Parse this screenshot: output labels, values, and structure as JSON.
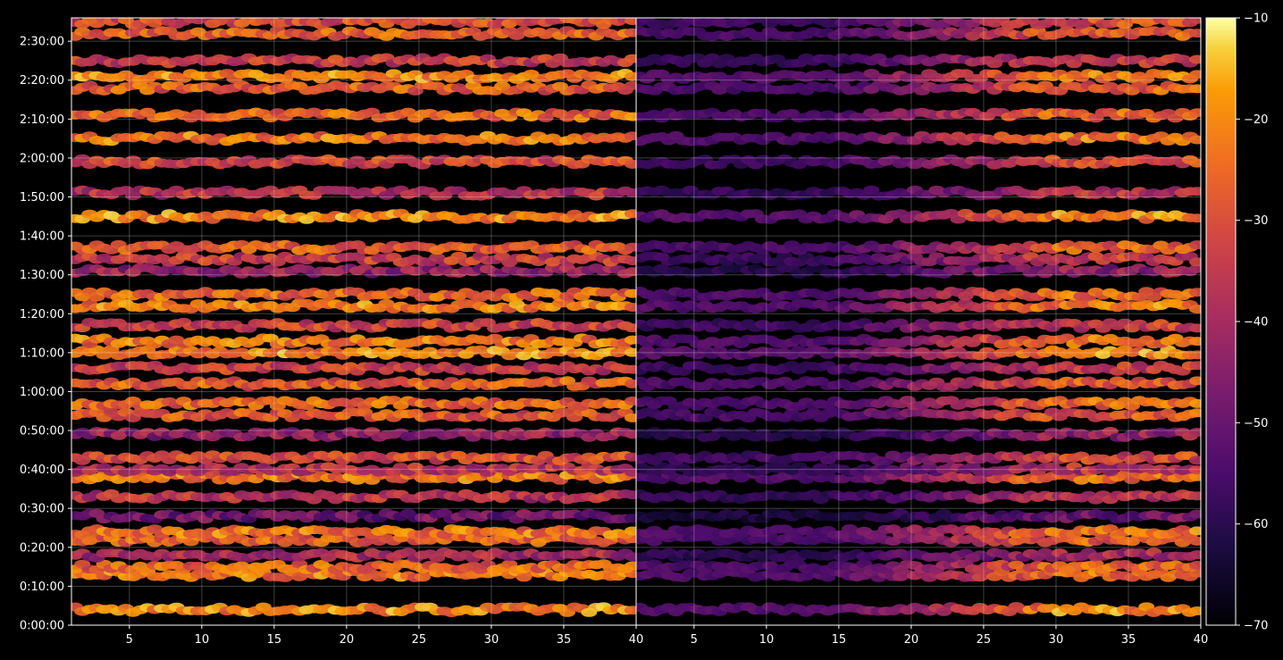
{
  "chart_data": [
    {
      "type": "heatmap",
      "colormap": "inferno",
      "background": "#000000",
      "grid": true,
      "x_ticks": [
        5,
        10,
        15,
        20,
        25,
        30,
        35,
        40
      ],
      "xlim": [
        1,
        40
      ],
      "y_ticks": [
        "0:00:00",
        "0:10:00",
        "0:20:00",
        "0:30:00",
        "0:40:00",
        "0:50:00",
        "1:00:00",
        "1:10:00",
        "1:20:00",
        "1:30:00",
        "1:40:00",
        "1:50:00",
        "2:00:00",
        "2:10:00",
        "2:20:00",
        "2:30:00"
      ],
      "ylim_minutes": [
        0,
        156
      ],
      "rows": [
        {
          "minute": 4,
          "level": 0.82
        },
        {
          "minute": 13,
          "level": 0.78
        },
        {
          "minute": 15,
          "level": 0.74
        },
        {
          "minute": 18,
          "level": 0.5
        },
        {
          "minute": 22,
          "level": 0.72
        },
        {
          "minute": 24,
          "level": 0.78
        },
        {
          "minute": 28,
          "level": 0.35
        },
        {
          "minute": 33,
          "level": 0.55
        },
        {
          "minute": 38,
          "level": 0.78
        },
        {
          "minute": 40,
          "level": 0.55
        },
        {
          "minute": 43,
          "level": 0.65
        },
        {
          "minute": 49,
          "level": 0.45
        },
        {
          "minute": 54,
          "level": 0.7
        },
        {
          "minute": 57,
          "level": 0.75
        },
        {
          "minute": 62,
          "level": 0.72
        },
        {
          "minute": 66,
          "level": 0.6
        },
        {
          "minute": 70,
          "level": 0.82
        },
        {
          "minute": 73,
          "level": 0.78
        },
        {
          "minute": 77,
          "level": 0.62
        },
        {
          "minute": 82,
          "level": 0.8
        },
        {
          "minute": 85,
          "level": 0.75
        },
        {
          "minute": 91,
          "level": 0.45
        },
        {
          "minute": 94,
          "level": 0.6
        },
        {
          "minute": 97,
          "level": 0.72
        },
        {
          "minute": 105,
          "level": 0.82
        },
        {
          "minute": 111,
          "level": 0.55
        },
        {
          "minute": 119,
          "level": 0.65
        },
        {
          "minute": 125,
          "level": 0.78
        },
        {
          "minute": 131,
          "level": 0.75
        },
        {
          "minute": 138,
          "level": 0.72
        },
        {
          "minute": 141,
          "level": 0.82
        },
        {
          "minute": 145,
          "level": 0.6
        },
        {
          "minute": 152,
          "level": 0.72
        },
        {
          "minute": 155,
          "level": 0.65
        }
      ]
    },
    {
      "type": "heatmap",
      "colormap": "inferno",
      "background": "#000000",
      "grid": true,
      "x_ticks": [
        5,
        10,
        15,
        20,
        25,
        30,
        35,
        40
      ],
      "xlim": [
        1,
        40
      ],
      "ylim_minutes": [
        0,
        156
      ],
      "fade": {
        "dark_until_x": 14,
        "full_from_x": 30
      }
    }
  ],
  "colorbar": {
    "colormap": "inferno",
    "range": [
      -70,
      -10
    ],
    "ticks": [
      "−10",
      "−20",
      "−30",
      "−40",
      "−50",
      "−60",
      "−70"
    ]
  }
}
